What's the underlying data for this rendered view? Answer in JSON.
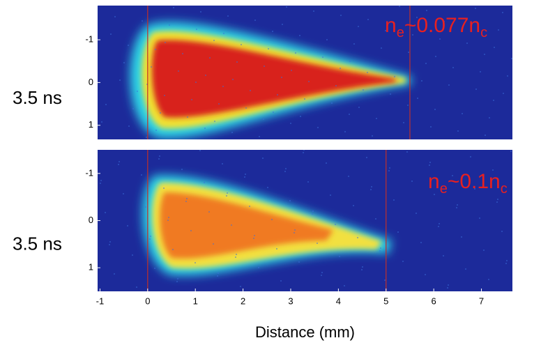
{
  "chart_data": [
    {
      "type": "image",
      "label": "3.5 ns",
      "annotation": [
        "n",
        "e",
        "~0.077n",
        "c"
      ],
      "xlim": [
        -1.05,
        7.65
      ],
      "ylim": [
        -1.8,
        1.33
      ],
      "yticks": [
        -1,
        0,
        1
      ],
      "vlines": [
        0,
        5.5
      ]
    },
    {
      "type": "image",
      "label": "3.5 ns",
      "annotation": [
        "n",
        "e",
        "~0.1n",
        "c"
      ],
      "xlim": [
        -1.05,
        7.65
      ],
      "ylim": [
        -1.5,
        1.5
      ],
      "yticks": [
        -1,
        0,
        1
      ],
      "vlines": [
        0,
        5
      ],
      "xticks": [
        -1,
        0,
        1,
        2,
        3,
        4,
        5,
        6,
        7
      ],
      "xlabel": "Distance (mm)"
    }
  ]
}
